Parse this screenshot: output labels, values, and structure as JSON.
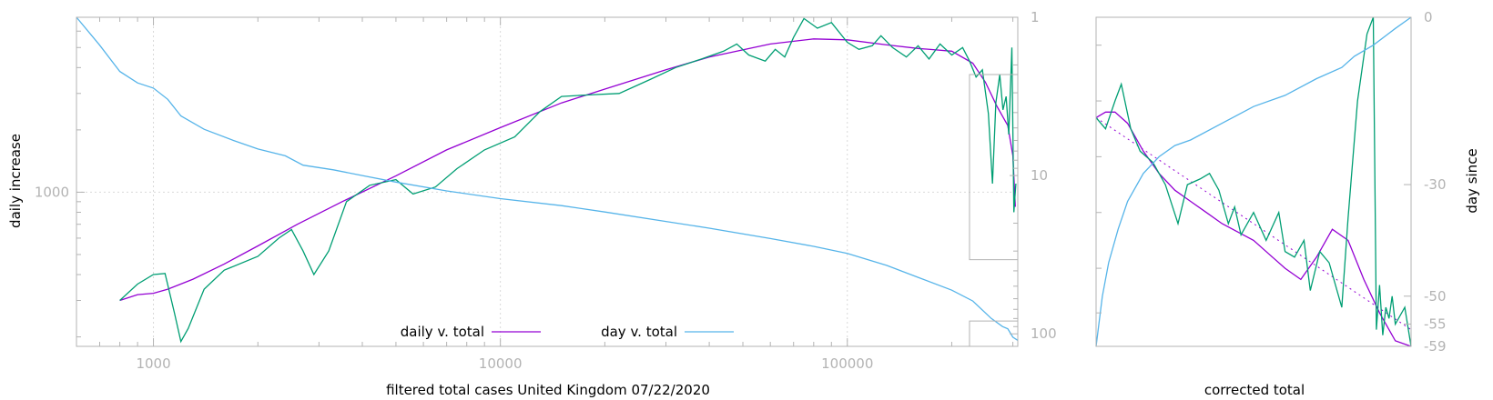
{
  "colors": {
    "daily_smooth": "#9400d3",
    "daily_raw": "#009e73",
    "day": "#56b4e9",
    "frame": "#b3b3b3",
    "grid": "#d9d9d9",
    "text": "#000000",
    "ticks": "#b3b3b3"
  },
  "chart_data": [
    {
      "type": "line",
      "xlabel": "filtered total cases United Kingdom 07/22/2020",
      "ylabel": "daily increase",
      "y2label": "",
      "xscale": "log",
      "yscale": "log",
      "y2scale": "log",
      "xlim": [
        600,
        310000
      ],
      "ylim": [
        180,
        7000
      ],
      "y2lim": [
        1,
        120
      ],
      "y2_inverted": true,
      "grid": true,
      "legend_position": "bottom-center",
      "x_tick_labels": [
        "1000",
        "10000",
        "100000"
      ],
      "y_tick_labels": [
        "1000"
      ],
      "y2_tick_labels": [
        "1",
        "10",
        "100"
      ],
      "series": [
        {
          "name": "daily v. total",
          "axis": "y",
          "color_key": "daily_smooth",
          "points": [
            [
              800,
              300
            ],
            [
              900,
              320
            ],
            [
              1000,
              325
            ],
            [
              1100,
              340
            ],
            [
              1300,
              380
            ],
            [
              1600,
              450
            ],
            [
              2000,
              550
            ],
            [
              2600,
              700
            ],
            [
              3500,
              900
            ],
            [
              5000,
              1200
            ],
            [
              7000,
              1600
            ],
            [
              10000,
              2050
            ],
            [
              15000,
              2700
            ],
            [
              20000,
              3150
            ],
            [
              30000,
              3900
            ],
            [
              40000,
              4500
            ],
            [
              60000,
              5200
            ],
            [
              80000,
              5500
            ],
            [
              100000,
              5450
            ],
            [
              130000,
              5150
            ],
            [
              160000,
              4950
            ],
            [
              200000,
              4800
            ],
            [
              230000,
              4200
            ],
            [
              250000,
              3400
            ],
            [
              270000,
              2600
            ],
            [
              290000,
              2100
            ],
            [
              300000,
              1500
            ],
            [
              305000,
              850
            ]
          ]
        },
        {
          "name": "",
          "axis": "y",
          "color_key": "daily_raw",
          "points": [
            [
              800,
              300
            ],
            [
              900,
              360
            ],
            [
              1000,
              400
            ],
            [
              1080,
              405
            ],
            [
              1150,
              260
            ],
            [
              1200,
              190
            ],
            [
              1260,
              220
            ],
            [
              1400,
              340
            ],
            [
              1600,
              420
            ],
            [
              2000,
              490
            ],
            [
              2300,
              600
            ],
            [
              2500,
              660
            ],
            [
              2700,
              520
            ],
            [
              2900,
              400
            ],
            [
              3200,
              520
            ],
            [
              3600,
              900
            ],
            [
              4200,
              1080
            ],
            [
              5000,
              1150
            ],
            [
              5600,
              980
            ],
            [
              6500,
              1060
            ],
            [
              7500,
              1300
            ],
            [
              9000,
              1600
            ],
            [
              11000,
              1850
            ],
            [
              13000,
              2450
            ],
            [
              15000,
              2900
            ],
            [
              18000,
              2950
            ],
            [
              22000,
              3000
            ],
            [
              27000,
              3500
            ],
            [
              32000,
              4000
            ],
            [
              38000,
              4400
            ],
            [
              44000,
              4800
            ],
            [
              48000,
              5200
            ],
            [
              52000,
              4600
            ],
            [
              58000,
              4300
            ],
            [
              62000,
              4900
            ],
            [
              66000,
              4500
            ],
            [
              70000,
              5600
            ],
            [
              75000,
              6900
            ],
            [
              82000,
              6200
            ],
            [
              90000,
              6600
            ],
            [
              100000,
              5300
            ],
            [
              108000,
              4900
            ],
            [
              118000,
              5100
            ],
            [
              125000,
              5700
            ],
            [
              135000,
              5000
            ],
            [
              148000,
              4500
            ],
            [
              160000,
              5100
            ],
            [
              172000,
              4400
            ],
            [
              185000,
              5200
            ],
            [
              200000,
              4600
            ],
            [
              215000,
              5000
            ],
            [
              225000,
              4300
            ],
            [
              235000,
              3600
            ],
            [
              245000,
              3900
            ],
            [
              255000,
              2400
            ],
            [
              262000,
              1100
            ],
            [
              268000,
              2700
            ],
            [
              275000,
              3700
            ],
            [
              281000,
              2500
            ],
            [
              287000,
              2900
            ],
            [
              292000,
              1900
            ],
            [
              298000,
              5000
            ],
            [
              302000,
              800
            ],
            [
              306000,
              1100
            ]
          ]
        },
        {
          "name": "day v. total",
          "axis": "y2",
          "color_key": "day",
          "points": [
            [
              600,
              1
            ],
            [
              700,
              1.5
            ],
            [
              800,
              2.2
            ],
            [
              900,
              2.6
            ],
            [
              1000,
              2.8
            ],
            [
              1100,
              3.3
            ],
            [
              1200,
              4.2
            ],
            [
              1400,
              5.1
            ],
            [
              1700,
              6
            ],
            [
              2000,
              6.8
            ],
            [
              2400,
              7.5
            ],
            [
              2700,
              8.6
            ],
            [
              3300,
              9.2
            ],
            [
              4000,
              10
            ],
            [
              5000,
              11
            ],
            [
              7000,
              12.5
            ],
            [
              10000,
              14
            ],
            [
              15000,
              15.5
            ],
            [
              20000,
              17
            ],
            [
              30000,
              19.5
            ],
            [
              40000,
              21.5
            ],
            [
              60000,
              25
            ],
            [
              80000,
              28
            ],
            [
              100000,
              31
            ],
            [
              130000,
              37
            ],
            [
              160000,
              44
            ],
            [
              200000,
              53
            ],
            [
              230000,
              62
            ],
            [
              260000,
              80
            ],
            [
              280000,
              90
            ],
            [
              290000,
              93
            ],
            [
              300000,
              105
            ],
            [
              310000,
              110
            ]
          ]
        }
      ],
      "inset_boxes": [
        {
          "x": [
            225000,
            310000
          ],
          "y2": [
            2.3,
            34
          ]
        },
        {
          "x": [
            225000,
            310000
          ],
          "y2": [
            83,
            130
          ]
        }
      ]
    },
    {
      "type": "line",
      "xlabel": "corrected total",
      "ylabel": "",
      "y2label": "day since",
      "xscale": "linear",
      "yscale": "linear",
      "y2scale": "linear",
      "xlim": [
        0,
        100
      ],
      "ylim": [
        -59,
        0
      ],
      "y2lim": [
        -59,
        0
      ],
      "grid": false,
      "y2_tick_labels": [
        "0",
        "-30",
        "-50",
        "-55",
        "-59"
      ],
      "series": [
        {
          "name": "",
          "color_key": "daily_smooth",
          "style": "solid",
          "points": [
            [
              0,
              -18
            ],
            [
              3,
              -17
            ],
            [
              6,
              -17
            ],
            [
              10,
              -19
            ],
            [
              15,
              -24
            ],
            [
              20,
              -28
            ],
            [
              25,
              -31
            ],
            [
              30,
              -33
            ],
            [
              35,
              -35
            ],
            [
              40,
              -37
            ],
            [
              45,
              -38.5
            ],
            [
              50,
              -40
            ],
            [
              55,
              -42.5
            ],
            [
              60,
              -45
            ],
            [
              65,
              -47
            ],
            [
              70,
              -43
            ],
            [
              75,
              -38
            ],
            [
              80,
              -40
            ],
            [
              85,
              -47
            ],
            [
              90,
              -53
            ],
            [
              95,
              -58
            ],
            [
              100,
              -59
            ]
          ]
        },
        {
          "name": "",
          "color_key": "daily_smooth",
          "style": "dotted",
          "points": [
            [
              0,
              -18
            ],
            [
              100,
              -56
            ]
          ]
        },
        {
          "name": "",
          "color_key": "daily_raw",
          "style": "solid",
          "points": [
            [
              0,
              -18
            ],
            [
              3,
              -20
            ],
            [
              6,
              -15
            ],
            [
              8,
              -12
            ],
            [
              11,
              -20
            ],
            [
              14,
              -24
            ],
            [
              18,
              -26
            ],
            [
              22,
              -30
            ],
            [
              26,
              -37
            ],
            [
              29,
              -30
            ],
            [
              33,
              -29
            ],
            [
              36,
              -28
            ],
            [
              39,
              -31
            ],
            [
              42,
              -37
            ],
            [
              44,
              -34
            ],
            [
              46,
              -39
            ],
            [
              50,
              -35
            ],
            [
              54,
              -40
            ],
            [
              58,
              -35
            ],
            [
              60,
              -42
            ],
            [
              63,
              -43
            ],
            [
              66,
              -40
            ],
            [
              68,
              -49
            ],
            [
              71,
              -42
            ],
            [
              74,
              -44
            ],
            [
              78,
              -52
            ],
            [
              80,
              -36
            ],
            [
              83,
              -15
            ],
            [
              86,
              -3
            ],
            [
              88,
              0
            ],
            [
              89,
              -56
            ],
            [
              90,
              -48
            ],
            [
              91,
              -57
            ],
            [
              92,
              -52
            ],
            [
              93,
              -54
            ],
            [
              94,
              -50
            ],
            [
              95,
              -55
            ],
            [
              96,
              -54
            ],
            [
              98,
              -52
            ],
            [
              100,
              -59
            ]
          ]
        },
        {
          "name": "",
          "color_key": "day",
          "style": "solid",
          "points": [
            [
              0,
              -59
            ],
            [
              2,
              -50
            ],
            [
              4,
              -44
            ],
            [
              7,
              -38
            ],
            [
              10,
              -33
            ],
            [
              15,
              -28
            ],
            [
              20,
              -25
            ],
            [
              25,
              -23
            ],
            [
              30,
              -22
            ],
            [
              40,
              -19
            ],
            [
              50,
              -16
            ],
            [
              60,
              -14
            ],
            [
              70,
              -11
            ],
            [
              78,
              -9
            ],
            [
              82,
              -7
            ],
            [
              88,
              -5
            ],
            [
              95,
              -2
            ],
            [
              100,
              0
            ]
          ]
        }
      ]
    }
  ]
}
